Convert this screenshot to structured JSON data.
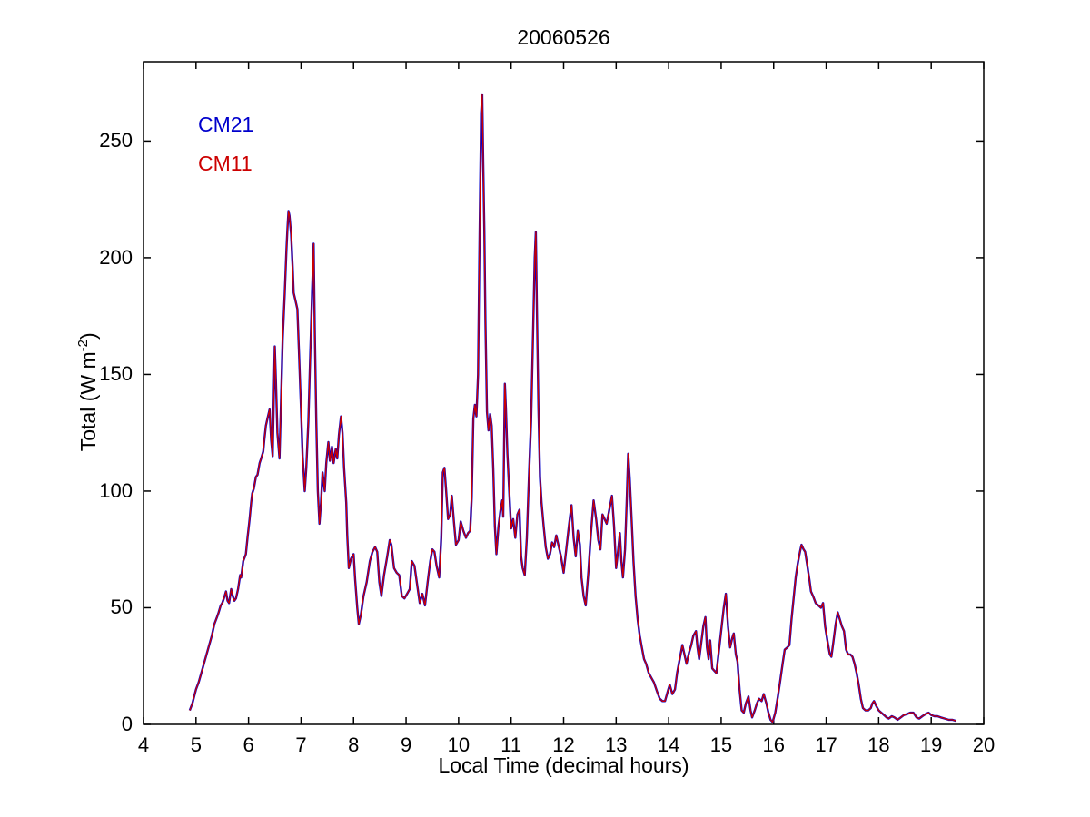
{
  "figure": {
    "background": "#ffffff"
  },
  "chart_data": {
    "type": "line",
    "title": "20060526",
    "xlabel": "Local Time (decimal hours)",
    "ylabel": "Total (W m^-2)",
    "ylabel_parts": {
      "prefix": "Total (W m",
      "sup": "-2",
      "suffix": ")"
    },
    "xlim": [
      4,
      20
    ],
    "ylim": [
      0,
      284
    ],
    "xticks": [
      4,
      5,
      6,
      7,
      8,
      9,
      10,
      11,
      12,
      13,
      14,
      15,
      16,
      17,
      18,
      19,
      20
    ],
    "yticks": [
      0,
      50,
      100,
      150,
      200,
      250
    ],
    "grid": false,
    "legend": {
      "position": "top-left-inside",
      "entries": [
        {
          "label": "CM21",
          "color": "#0000cc"
        },
        {
          "label": "CM11",
          "color": "#cc0000"
        }
      ]
    },
    "series_note": "CM21 (blue) and CM11 (red) pyranometer traces overlap almost exactly; red is drawn on top of blue. Shared points below as [local_time_decimal_hours, total_W_m-2].",
    "series": [
      {
        "name": "CM21",
        "color": "#0000cc"
      },
      {
        "name": "CM11",
        "color": "#cc0000"
      }
    ],
    "points": [
      [
        4.88,
        6
      ],
      [
        4.93,
        9
      ],
      [
        5.0,
        15
      ],
      [
        5.05,
        18
      ],
      [
        5.1,
        22
      ],
      [
        5.15,
        26
      ],
      [
        5.2,
        30
      ],
      [
        5.25,
        34
      ],
      [
        5.3,
        38
      ],
      [
        5.35,
        43
      ],
      [
        5.4,
        46
      ],
      [
        5.43,
        48
      ],
      [
        5.47,
        51
      ],
      [
        5.5,
        52
      ],
      [
        5.53,
        54
      ],
      [
        5.57,
        57
      ],
      [
        5.6,
        53
      ],
      [
        5.63,
        52
      ],
      [
        5.67,
        58
      ],
      [
        5.7,
        55
      ],
      [
        5.73,
        53
      ],
      [
        5.76,
        54
      ],
      [
        5.8,
        58
      ],
      [
        5.84,
        64
      ],
      [
        5.86,
        63
      ],
      [
        5.9,
        70
      ],
      [
        5.95,
        73
      ],
      [
        5.98,
        80
      ],
      [
        6.02,
        88
      ],
      [
        6.05,
        95
      ],
      [
        6.07,
        99
      ],
      [
        6.1,
        101
      ],
      [
        6.14,
        106
      ],
      [
        6.17,
        107
      ],
      [
        6.21,
        112
      ],
      [
        6.24,
        114
      ],
      [
        6.28,
        117
      ],
      [
        6.3,
        122
      ],
      [
        6.33,
        128
      ],
      [
        6.36,
        131
      ],
      [
        6.4,
        135
      ],
      [
        6.43,
        122
      ],
      [
        6.46,
        115
      ],
      [
        6.48,
        140
      ],
      [
        6.5,
        162
      ],
      [
        6.52,
        148
      ],
      [
        6.55,
        125
      ],
      [
        6.59,
        114
      ],
      [
        6.62,
        140
      ],
      [
        6.65,
        165
      ],
      [
        6.69,
        185
      ],
      [
        6.72,
        203
      ],
      [
        6.74,
        212
      ],
      [
        6.76,
        220
      ],
      [
        6.78,
        218
      ],
      [
        6.81,
        210
      ],
      [
        6.84,
        196
      ],
      [
        6.86,
        185
      ],
      [
        6.9,
        181
      ],
      [
        6.93,
        178
      ],
      [
        6.96,
        160
      ],
      [
        7.0,
        135
      ],
      [
        7.03,
        115
      ],
      [
        7.07,
        100
      ],
      [
        7.1,
        110
      ],
      [
        7.14,
        130
      ],
      [
        7.17,
        155
      ],
      [
        7.21,
        185
      ],
      [
        7.24,
        206
      ],
      [
        7.26,
        170
      ],
      [
        7.29,
        130
      ],
      [
        7.32,
        100
      ],
      [
        7.35,
        86
      ],
      [
        7.38,
        95
      ],
      [
        7.41,
        108
      ],
      [
        7.45,
        100
      ],
      [
        7.48,
        112
      ],
      [
        7.52,
        121
      ],
      [
        7.55,
        113
      ],
      [
        7.59,
        119
      ],
      [
        7.62,
        112
      ],
      [
        7.66,
        118
      ],
      [
        7.69,
        114
      ],
      [
        7.72,
        124
      ],
      [
        7.76,
        132
      ],
      [
        7.79,
        125
      ],
      [
        7.82,
        110
      ],
      [
        7.86,
        95
      ],
      [
        7.88,
        81
      ],
      [
        7.91,
        67
      ],
      [
        7.95,
        71
      ],
      [
        8.0,
        73
      ],
      [
        8.03,
        62
      ],
      [
        8.07,
        50
      ],
      [
        8.1,
        43
      ],
      [
        8.14,
        47
      ],
      [
        8.19,
        55
      ],
      [
        8.25,
        61
      ],
      [
        8.31,
        70
      ],
      [
        8.36,
        74
      ],
      [
        8.41,
        76
      ],
      [
        8.45,
        74
      ],
      [
        8.49,
        61
      ],
      [
        8.53,
        55
      ],
      [
        8.58,
        64
      ],
      [
        8.64,
        72
      ],
      [
        8.69,
        79
      ],
      [
        8.72,
        77
      ],
      [
        8.77,
        67
      ],
      [
        8.82,
        65
      ],
      [
        8.87,
        64
      ],
      [
        8.92,
        55
      ],
      [
        8.97,
        54
      ],
      [
        9.02,
        56
      ],
      [
        9.07,
        58
      ],
      [
        9.11,
        70
      ],
      [
        9.16,
        68
      ],
      [
        9.21,
        60
      ],
      [
        9.26,
        52
      ],
      [
        9.31,
        56
      ],
      [
        9.36,
        51
      ],
      [
        9.41,
        61
      ],
      [
        9.46,
        70
      ],
      [
        9.5,
        75
      ],
      [
        9.54,
        74
      ],
      [
        9.58,
        68
      ],
      [
        9.63,
        63
      ],
      [
        9.67,
        80
      ],
      [
        9.7,
        108
      ],
      [
        9.73,
        110
      ],
      [
        9.76,
        101
      ],
      [
        9.8,
        88
      ],
      [
        9.84,
        90
      ],
      [
        9.87,
        98
      ],
      [
        9.91,
        87
      ],
      [
        9.95,
        77
      ],
      [
        10.0,
        79
      ],
      [
        10.04,
        87
      ],
      [
        10.09,
        83
      ],
      [
        10.14,
        80
      ],
      [
        10.18,
        82
      ],
      [
        10.22,
        83
      ],
      [
        10.25,
        97
      ],
      [
        10.28,
        131
      ],
      [
        10.31,
        137
      ],
      [
        10.34,
        132
      ],
      [
        10.37,
        150
      ],
      [
        10.4,
        210
      ],
      [
        10.43,
        262
      ],
      [
        10.45,
        270
      ],
      [
        10.47,
        240
      ],
      [
        10.49,
        212
      ],
      [
        10.51,
        173
      ],
      [
        10.54,
        134
      ],
      [
        10.57,
        126
      ],
      [
        10.6,
        133
      ],
      [
        10.63,
        128
      ],
      [
        10.66,
        110
      ],
      [
        10.69,
        85
      ],
      [
        10.72,
        73
      ],
      [
        10.76,
        85
      ],
      [
        10.8,
        92
      ],
      [
        10.83,
        96
      ],
      [
        10.85,
        89
      ],
      [
        10.88,
        146
      ],
      [
        10.9,
        136
      ],
      [
        10.93,
        116
      ],
      [
        10.97,
        97
      ],
      [
        11.0,
        84
      ],
      [
        11.04,
        88
      ],
      [
        11.08,
        80
      ],
      [
        11.12,
        90
      ],
      [
        11.16,
        92
      ],
      [
        11.19,
        72
      ],
      [
        11.22,
        67
      ],
      [
        11.26,
        64
      ],
      [
        11.3,
        80
      ],
      [
        11.34,
        106
      ],
      [
        11.38,
        130
      ],
      [
        11.42,
        170
      ],
      [
        11.45,
        200
      ],
      [
        11.47,
        211
      ],
      [
        11.49,
        180
      ],
      [
        11.52,
        135
      ],
      [
        11.55,
        106
      ],
      [
        11.58,
        95
      ],
      [
        11.62,
        85
      ],
      [
        11.66,
        76
      ],
      [
        11.7,
        71
      ],
      [
        11.74,
        73
      ],
      [
        11.78,
        78
      ],
      [
        11.82,
        76
      ],
      [
        11.86,
        81
      ],
      [
        11.9,
        77
      ],
      [
        11.95,
        72
      ],
      [
        12.0,
        65
      ],
      [
        12.05,
        75
      ],
      [
        12.1,
        85
      ],
      [
        12.15,
        94
      ],
      [
        12.19,
        80
      ],
      [
        12.23,
        72
      ],
      [
        12.27,
        83
      ],
      [
        12.31,
        77
      ],
      [
        12.34,
        63
      ],
      [
        12.38,
        55
      ],
      [
        12.42,
        51
      ],
      [
        12.47,
        65
      ],
      [
        12.52,
        82
      ],
      [
        12.57,
        96
      ],
      [
        12.62,
        88
      ],
      [
        12.66,
        79
      ],
      [
        12.7,
        75
      ],
      [
        12.74,
        90
      ],
      [
        12.78,
        88
      ],
      [
        12.82,
        86
      ],
      [
        12.87,
        92
      ],
      [
        12.92,
        98
      ],
      [
        12.96,
        85
      ],
      [
        13.0,
        67
      ],
      [
        13.04,
        75
      ],
      [
        13.07,
        82
      ],
      [
        13.1,
        70
      ],
      [
        13.13,
        63
      ],
      [
        13.17,
        75
      ],
      [
        13.2,
        95
      ],
      [
        13.23,
        116
      ],
      [
        13.26,
        105
      ],
      [
        13.3,
        85
      ],
      [
        13.33,
        70
      ],
      [
        13.37,
        55
      ],
      [
        13.41,
        45
      ],
      [
        13.45,
        38
      ],
      [
        13.49,
        33
      ],
      [
        13.53,
        28
      ],
      [
        13.57,
        26
      ],
      [
        13.62,
        22
      ],
      [
        13.67,
        20
      ],
      [
        13.72,
        18
      ],
      [
        13.78,
        14
      ],
      [
        13.83,
        11
      ],
      [
        13.88,
        10
      ],
      [
        13.93,
        10
      ],
      [
        13.98,
        14
      ],
      [
        14.02,
        17
      ],
      [
        14.07,
        13
      ],
      [
        14.12,
        15
      ],
      [
        14.16,
        22
      ],
      [
        14.21,
        28
      ],
      [
        14.26,
        34
      ],
      [
        14.3,
        30
      ],
      [
        14.34,
        26
      ],
      [
        14.39,
        31
      ],
      [
        14.43,
        34
      ],
      [
        14.47,
        38
      ],
      [
        14.52,
        40
      ],
      [
        14.55,
        33
      ],
      [
        14.58,
        28
      ],
      [
        14.62,
        35
      ],
      [
        14.66,
        42
      ],
      [
        14.7,
        46
      ],
      [
        14.73,
        33
      ],
      [
        14.76,
        28
      ],
      [
        14.79,
        36
      ],
      [
        14.83,
        24
      ],
      [
        14.87,
        23
      ],
      [
        14.91,
        22
      ],
      [
        14.95,
        30
      ],
      [
        15.0,
        40
      ],
      [
        15.05,
        50
      ],
      [
        15.09,
        56
      ],
      [
        15.13,
        42
      ],
      [
        15.17,
        33
      ],
      [
        15.21,
        37
      ],
      [
        15.24,
        39
      ],
      [
        15.28,
        30
      ],
      [
        15.31,
        27
      ],
      [
        15.35,
        15
      ],
      [
        15.39,
        6
      ],
      [
        15.43,
        5
      ],
      [
        15.47,
        9
      ],
      [
        15.52,
        12
      ],
      [
        15.56,
        6
      ],
      [
        15.59,
        3
      ],
      [
        15.64,
        6
      ],
      [
        15.68,
        9
      ],
      [
        15.72,
        11
      ],
      [
        15.77,
        10
      ],
      [
        15.81,
        13
      ],
      [
        15.86,
        9
      ],
      [
        15.9,
        5
      ],
      [
        15.94,
        2
      ],
      [
        15.98,
        1
      ],
      [
        16.03,
        5
      ],
      [
        16.08,
        12
      ],
      [
        16.12,
        18
      ],
      [
        16.17,
        26
      ],
      [
        16.21,
        32
      ],
      [
        16.26,
        33
      ],
      [
        16.3,
        34
      ],
      [
        16.34,
        45
      ],
      [
        16.38,
        54
      ],
      [
        16.42,
        63
      ],
      [
        16.46,
        69
      ],
      [
        16.5,
        74
      ],
      [
        16.53,
        77
      ],
      [
        16.57,
        75
      ],
      [
        16.6,
        74
      ],
      [
        16.64,
        68
      ],
      [
        16.68,
        62
      ],
      [
        16.71,
        57
      ],
      [
        16.75,
        55
      ],
      [
        16.8,
        52
      ],
      [
        16.85,
        51
      ],
      [
        16.9,
        50
      ],
      [
        16.94,
        52
      ],
      [
        16.98,
        42
      ],
      [
        17.03,
        35
      ],
      [
        17.07,
        30
      ],
      [
        17.1,
        29
      ],
      [
        17.14,
        36
      ],
      [
        17.18,
        43
      ],
      [
        17.22,
        48
      ],
      [
        17.26,
        45
      ],
      [
        17.3,
        42
      ],
      [
        17.34,
        40
      ],
      [
        17.38,
        32
      ],
      [
        17.42,
        30
      ],
      [
        17.46,
        30
      ],
      [
        17.5,
        29
      ],
      [
        17.54,
        26
      ],
      [
        17.58,
        22
      ],
      [
        17.62,
        17
      ],
      [
        17.66,
        11
      ],
      [
        17.7,
        7
      ],
      [
        17.75,
        6
      ],
      [
        17.8,
        6
      ],
      [
        17.85,
        7
      ],
      [
        17.88,
        9
      ],
      [
        17.91,
        10
      ],
      [
        17.95,
        8
      ],
      [
        18.0,
        6
      ],
      [
        18.05,
        5
      ],
      [
        18.1,
        4
      ],
      [
        18.15,
        3
      ],
      [
        18.19,
        2.5
      ],
      [
        18.25,
        3.5
      ],
      [
        18.3,
        3
      ],
      [
        18.36,
        2
      ],
      [
        18.42,
        3
      ],
      [
        18.48,
        4
      ],
      [
        18.55,
        4.5
      ],
      [
        18.6,
        5
      ],
      [
        18.66,
        5
      ],
      [
        18.72,
        3
      ],
      [
        18.77,
        2.5
      ],
      [
        18.83,
        3.5
      ],
      [
        18.9,
        4.5
      ],
      [
        18.95,
        5
      ],
      [
        19.0,
        4
      ],
      [
        19.06,
        3.5
      ],
      [
        19.12,
        3.5
      ],
      [
        19.18,
        3
      ],
      [
        19.26,
        2.5
      ],
      [
        19.33,
        2
      ],
      [
        19.4,
        2
      ],
      [
        19.47,
        1.5
      ]
    ]
  }
}
